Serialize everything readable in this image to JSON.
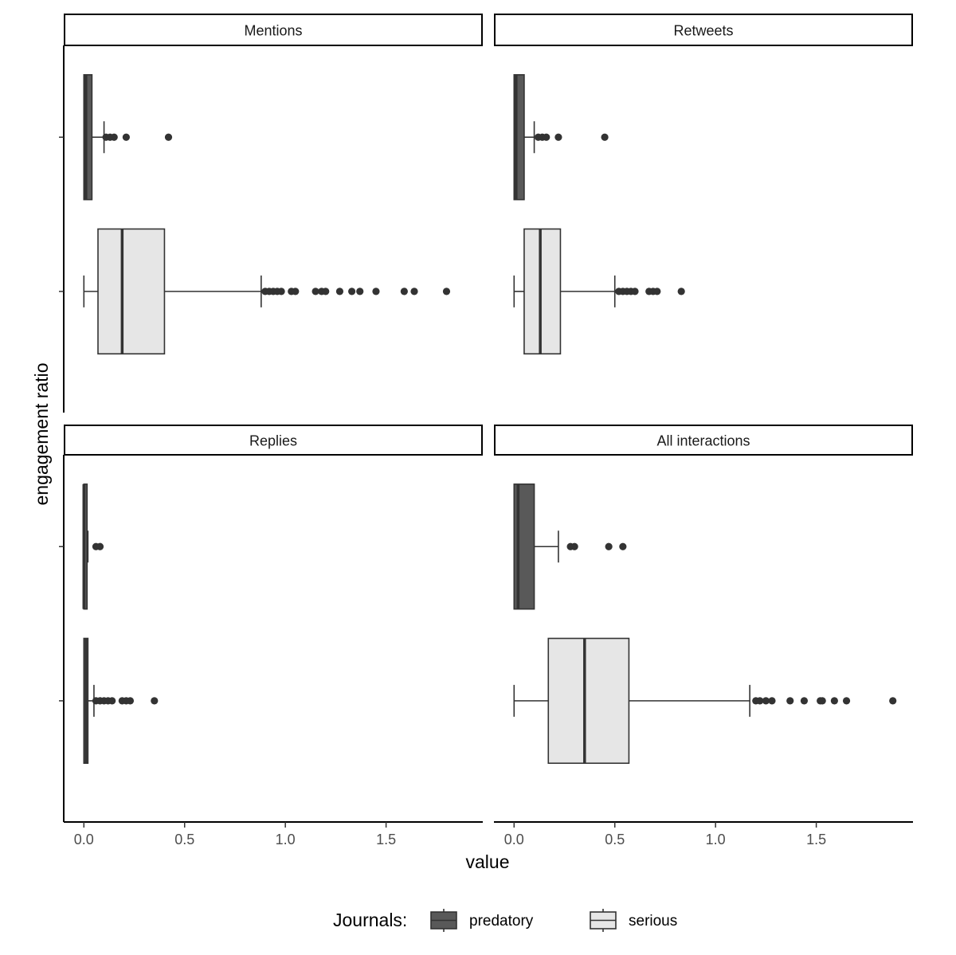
{
  "chart_data": {
    "type": "boxplot",
    "x_label": "value",
    "y_label": "engagement ratio",
    "x_ticks": [
      0.0,
      0.5,
      1.0,
      1.5
    ],
    "x_tick_labels": [
      "0.0",
      "0.5",
      "1.0",
      "1.5"
    ],
    "x_range": [
      -0.1,
      1.98
    ],
    "legend": {
      "title": "Journals:",
      "position": "bottom",
      "entries": [
        {
          "name": "predatory",
          "color": "#595959"
        },
        {
          "name": "serious",
          "color": "#e6e6e6"
        }
      ]
    },
    "colors": {
      "predatory": "#595959",
      "serious": "#e6e6e6",
      "outline": "#333333",
      "outlier": "#333333"
    },
    "panels": [
      {
        "title": "Mentions",
        "groups": [
          {
            "name": "predatory",
            "min": 0.0,
            "q1": 0.0,
            "median": 0.01,
            "q3": 0.04,
            "max": 0.1,
            "outliers": [
              0.11,
              0.13,
              0.15,
              0.21,
              0.42
            ]
          },
          {
            "name": "serious",
            "min": 0.0,
            "q1": 0.07,
            "median": 0.19,
            "q3": 0.4,
            "max": 0.88,
            "outliers": [
              0.9,
              0.92,
              0.94,
              0.96,
              0.98,
              1.03,
              1.05,
              1.15,
              1.18,
              1.2,
              1.27,
              1.33,
              1.37,
              1.45,
              1.59,
              1.64,
              1.8
            ]
          }
        ]
      },
      {
        "title": "Retweets",
        "groups": [
          {
            "name": "predatory",
            "min": 0.0,
            "q1": 0.0,
            "median": 0.01,
            "q3": 0.05,
            "max": 0.1,
            "outliers": [
              0.12,
              0.14,
              0.16,
              0.22,
              0.45
            ]
          },
          {
            "name": "serious",
            "min": 0.0,
            "q1": 0.05,
            "median": 0.13,
            "q3": 0.23,
            "max": 0.5,
            "outliers": [
              0.52,
              0.54,
              0.56,
              0.58,
              0.6,
              0.67,
              0.69,
              0.71,
              0.83
            ]
          }
        ]
      },
      {
        "title": "Replies",
        "groups": [
          {
            "name": "predatory",
            "min": 0.0,
            "q1": 0.0,
            "median": 0.0,
            "q3": 0.01,
            "max": 0.02,
            "outliers": [
              0.06,
              0.08
            ]
          },
          {
            "name": "serious",
            "min": 0.0,
            "q1": 0.0,
            "median": 0.01,
            "q3": 0.02,
            "max": 0.05,
            "outliers": [
              0.06,
              0.08,
              0.1,
              0.12,
              0.14,
              0.19,
              0.21,
              0.23,
              0.35
            ]
          }
        ]
      },
      {
        "title": "All interactions",
        "groups": [
          {
            "name": "predatory",
            "min": 0.0,
            "q1": 0.0,
            "median": 0.02,
            "q3": 0.1,
            "max": 0.22,
            "outliers": [
              0.28,
              0.3,
              0.47,
              0.54
            ]
          },
          {
            "name": "serious",
            "min": 0.0,
            "q1": 0.17,
            "median": 0.35,
            "q3": 0.57,
            "max": 1.17,
            "outliers": [
              1.2,
              1.22,
              1.25,
              1.28,
              1.37,
              1.44,
              1.52,
              1.53,
              1.59,
              1.65,
              1.88
            ]
          }
        ]
      }
    ]
  }
}
